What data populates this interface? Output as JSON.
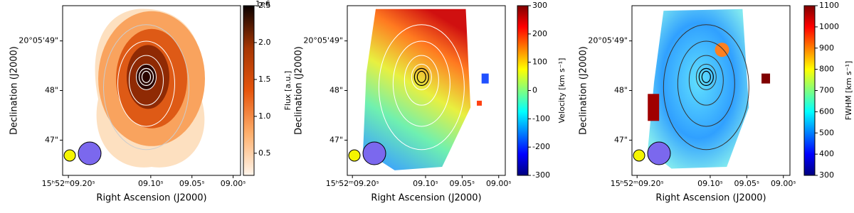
{
  "chart_data": [
    {
      "type": "map",
      "xlabel": "Right Ascension (J2000)",
      "ylabel": "Declination (J2000)",
      "xlim": [
        9.207,
        8.991
      ],
      "xticks": [
        {
          "value": 9.2,
          "label": "15ʰ52ᵐ09.20ˢ"
        },
        {
          "value": 9.1,
          "label": "09.10ˢ"
        },
        {
          "value": 9.05,
          "label": "09.05ˢ"
        },
        {
          "value": 9.0,
          "label": "09.00ˢ"
        }
      ],
      "ylim": [
        46.29,
        49.71
      ],
      "yticks": [
        {
          "value": 47,
          "label": "47\""
        },
        {
          "value": 48,
          "label": "48\""
        },
        {
          "value": 49,
          "label": "20°05'49\""
        }
      ],
      "colorbar": {
        "label": "Flux [a.u.]",
        "offset": "1e6",
        "lim": [
          0.2,
          2.5
        ],
        "colormap": "oranges",
        "ticks": [
          0.5,
          {
            "value": 1.0,
            "label": "1.0"
          },
          1.5,
          {
            "value": 2.0,
            "label": "2.0"
          },
          2.5
        ]
      }
    },
    {
      "type": "map",
      "xlabel": "Right Ascension (J2000)",
      "ylabel": "Declination (J2000)",
      "xlim": [
        9.207,
        8.991
      ],
      "xticks": [
        {
          "value": 9.2,
          "label": "15ʰ52ᵐ09.20ˢ"
        },
        {
          "value": 9.1,
          "label": "09.10ˢ"
        },
        {
          "value": 9.05,
          "label": "09.05ˢ"
        },
        {
          "value": 9.0,
          "label": "09.00ˢ"
        }
      ],
      "ylim": [
        46.29,
        49.71
      ],
      "yticks": [
        {
          "value": 47,
          "label": "47\""
        },
        {
          "value": 48,
          "label": "48\""
        },
        {
          "value": 49,
          "label": "20°05'49\""
        }
      ],
      "colorbar": {
        "label": "Velocity [km s⁻¹]",
        "lim": [
          -300,
          300
        ],
        "colormap": "jet",
        "ticks": [
          -300,
          -200,
          -100,
          0,
          100,
          200,
          300
        ]
      }
    },
    {
      "type": "map",
      "xlabel": "Right Ascension (J2000)",
      "ylabel": "Declination (J2000)",
      "xlim": [
        9.207,
        8.991
      ],
      "xticks": [
        {
          "value": 9.2,
          "label": "15ʰ52ᵐ09.20ˢ"
        },
        {
          "value": 9.1,
          "label": "09.10ˢ"
        },
        {
          "value": 9.05,
          "label": "09.05ˢ"
        },
        {
          "value": 9.0,
          "label": "09.00ˢ"
        }
      ],
      "ylim": [
        46.29,
        49.71
      ],
      "yticks": [
        {
          "value": 47,
          "label": "47\""
        },
        {
          "value": 48,
          "label": "48\""
        },
        {
          "value": 49,
          "label": "20°05'49\""
        }
      ],
      "colorbar": {
        "label": "FWHM [km s⁻¹]",
        "lim": [
          300,
          1100
        ],
        "colormap": "jet",
        "ticks": [
          300,
          400,
          500,
          600,
          700,
          800,
          900,
          1000,
          1100
        ]
      }
    }
  ]
}
